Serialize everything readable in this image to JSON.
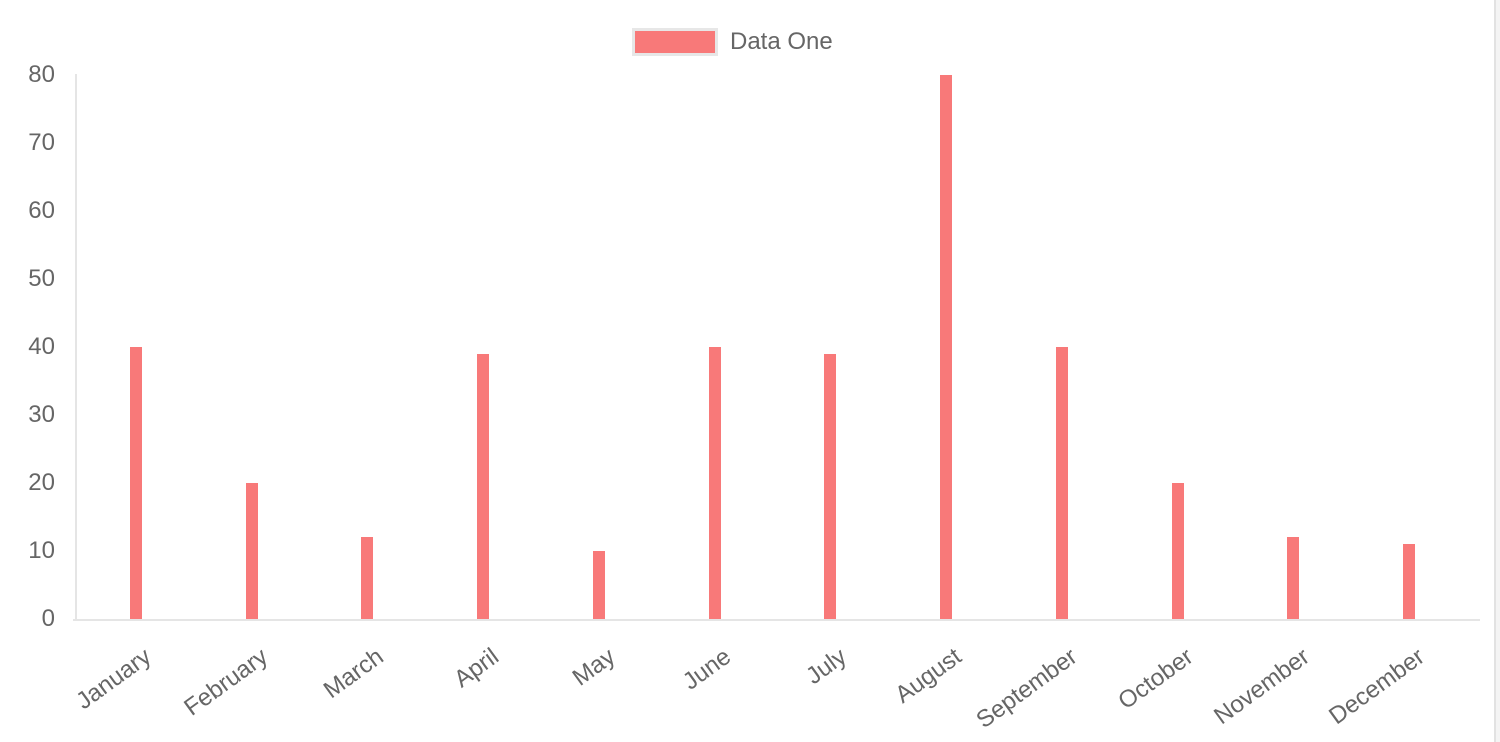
{
  "chart_data": {
    "type": "bar",
    "title": "",
    "categories": [
      "January",
      "February",
      "March",
      "April",
      "May",
      "June",
      "July",
      "August",
      "September",
      "October",
      "November",
      "December"
    ],
    "series": [
      {
        "name": "Data One",
        "color": "#f87979",
        "values": [
          40,
          20,
          12,
          39,
          10,
          40,
          39,
          80,
          40,
          20,
          12,
          11
        ]
      }
    ],
    "xlabel": "",
    "ylabel": "",
    "ylim": [
      0,
      80
    ],
    "yticks": [
      0,
      10,
      20,
      30,
      40,
      50,
      60,
      70,
      80
    ],
    "grid": "off",
    "legend_position": "top",
    "x_tick_rotation_deg": -36
  },
  "legend": {
    "label": "Data One",
    "swatch_color": "#f87979"
  },
  "colors": {
    "bar": "#f87979",
    "axis_line": "#e5e5e5",
    "tick_text": "#666666",
    "legend_border": "#e7e7e7",
    "scrollbar_track": "#f4f4f4",
    "scrollbar_line": "#e2e2e2",
    "background": "#ffffff"
  }
}
